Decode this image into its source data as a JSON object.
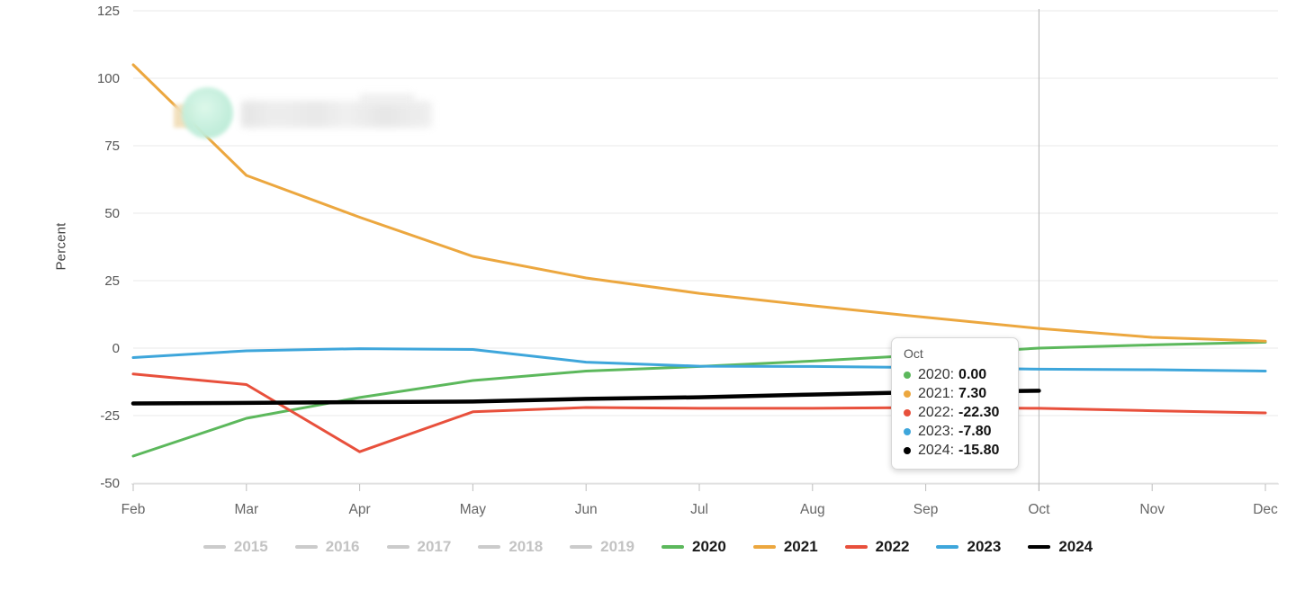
{
  "chart_data": {
    "type": "line",
    "title": "",
    "ylabel": "Percent",
    "x": [
      "Feb",
      "Mar",
      "Apr",
      "May",
      "Jun",
      "Jul",
      "Aug",
      "Sep",
      "Oct",
      "Nov",
      "Dec"
    ],
    "yticks": [
      125,
      100,
      75,
      50,
      25,
      0,
      -25,
      -50
    ],
    "ylim": [
      -50,
      125
    ],
    "grid": "horizontal",
    "legend_position": "bottom",
    "crosshair_x": "Oct",
    "series": [
      {
        "name": "2015",
        "color": "#cbcbcb",
        "disabled": true,
        "values": []
      },
      {
        "name": "2016",
        "color": "#cbcbcb",
        "disabled": true,
        "values": []
      },
      {
        "name": "2017",
        "color": "#cbcbcb",
        "disabled": true,
        "values": []
      },
      {
        "name": "2018",
        "color": "#cbcbcb",
        "disabled": true,
        "values": []
      },
      {
        "name": "2019",
        "color": "#cbcbcb",
        "disabled": true,
        "values": []
      },
      {
        "name": "2020",
        "color": "#5cb85c",
        "disabled": false,
        "values": [
          -40,
          -26,
          -18.3,
          -12,
          -8.5,
          -6.8,
          -4.8,
          -2.5,
          0,
          1.2,
          2.2
        ]
      },
      {
        "name": "2021",
        "color": "#eca73f",
        "disabled": false,
        "values": [
          105,
          64,
          48.5,
          34,
          26,
          20.3,
          15.7,
          11.4,
          7.3,
          4,
          2.6
        ]
      },
      {
        "name": "2022",
        "color": "#e8503c",
        "disabled": false,
        "values": [
          -9.6,
          -13.5,
          -38.4,
          -23.6,
          -22,
          -22.3,
          -22.3,
          -22,
          -22.3,
          -23.2,
          -24
        ]
      },
      {
        "name": "2023",
        "color": "#3ea6db",
        "disabled": false,
        "values": [
          -3.5,
          -1,
          -0.2,
          -0.5,
          -5.2,
          -6.7,
          -6.8,
          -7.2,
          -7.8,
          -8,
          -8.5
        ]
      },
      {
        "name": "2024",
        "color": "#000000",
        "disabled": false,
        "thick": true,
        "values": [
          -20.5,
          -20.3,
          -20,
          -19.8,
          -18.8,
          -18.2,
          -17.2,
          -16.3,
          -15.8,
          null,
          null
        ]
      }
    ]
  },
  "tooltip": {
    "header": "Oct",
    "rows": [
      {
        "label": "2020",
        "value": "0.00",
        "color": "#5cb85c"
      },
      {
        "label": "2021",
        "value": "7.30",
        "color": "#eca73f"
      },
      {
        "label": "2022",
        "value": "-22.30",
        "color": "#e8503c"
      },
      {
        "label": "2023",
        "value": "-7.80",
        "color": "#3ea6db"
      },
      {
        "label": "2024",
        "value": "-15.80",
        "color": "#000000"
      }
    ]
  },
  "legend": {
    "items": [
      {
        "label": "2015",
        "color": "#cbcbcb",
        "disabled": true
      },
      {
        "label": "2016",
        "color": "#cbcbcb",
        "disabled": true
      },
      {
        "label": "2017",
        "color": "#cbcbcb",
        "disabled": true
      },
      {
        "label": "2018",
        "color": "#cbcbcb",
        "disabled": true
      },
      {
        "label": "2019",
        "color": "#cbcbcb",
        "disabled": true
      },
      {
        "label": "2020",
        "color": "#5cb85c",
        "disabled": false
      },
      {
        "label": "2021",
        "color": "#eca73f",
        "disabled": false
      },
      {
        "label": "2022",
        "color": "#e8503c",
        "disabled": false
      },
      {
        "label": "2023",
        "color": "#3ea6db",
        "disabled": false
      },
      {
        "label": "2024",
        "color": "#000000",
        "disabled": false
      }
    ]
  },
  "colors": {
    "gridline": "#e9e9e9",
    "axis_line": "#d9d9d9",
    "tick": "#bdbdbd",
    "crosshair": "#b3b3b3",
    "axis_text": "#555555",
    "month_text": "#666666"
  }
}
